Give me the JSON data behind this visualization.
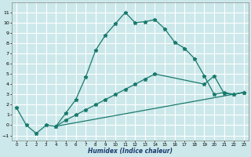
{
  "xlabel": "Humidex (Indice chaleur)",
  "bg_color": "#cce8ea",
  "grid_color": "#ffffff",
  "line_color": "#1a7a6e",
  "line1_x": [
    0,
    1,
    2,
    3,
    4,
    5,
    6,
    7,
    8,
    9,
    10,
    11,
    12,
    13,
    14,
    15,
    16,
    17,
    18,
    19,
    20,
    21,
    22,
    23
  ],
  "line1_y": [
    1.7,
    0.0,
    -0.8,
    0.0,
    -0.1,
    1.2,
    2.5,
    4.7,
    7.3,
    8.8,
    9.9,
    11.0,
    10.0,
    10.1,
    10.3,
    9.4,
    8.1,
    7.5,
    6.5,
    4.8,
    3.0,
    3.2,
    3.0,
    3.2
  ],
  "line2_x": [
    4,
    5,
    6,
    7,
    8,
    9,
    10,
    11,
    12,
    13,
    14,
    19,
    20,
    21,
    22,
    23
  ],
  "line2_y": [
    -0.1,
    0.5,
    1.0,
    1.5,
    2.0,
    2.5,
    3.0,
    3.5,
    4.0,
    4.5,
    5.0,
    4.0,
    4.8,
    3.1,
    3.0,
    3.2
  ],
  "line3_x": [
    4,
    23
  ],
  "line3_y": [
    -0.1,
    3.2
  ],
  "ylim": [
    -1.5,
    12
  ],
  "xlim": [
    -0.5,
    23.5
  ],
  "yticks": [
    -1,
    0,
    1,
    2,
    3,
    4,
    5,
    6,
    7,
    8,
    9,
    10,
    11
  ],
  "xticks": [
    0,
    1,
    2,
    3,
    4,
    5,
    6,
    7,
    8,
    9,
    10,
    11,
    12,
    13,
    14,
    15,
    16,
    17,
    18,
    19,
    20,
    21,
    22,
    23
  ]
}
